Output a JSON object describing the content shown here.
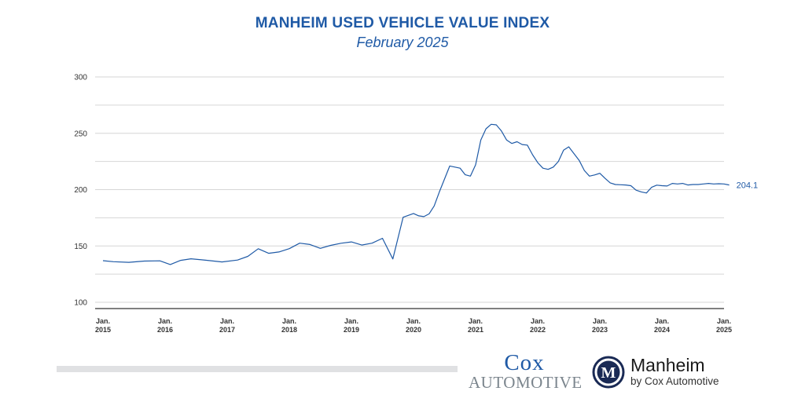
{
  "chart_data": {
    "type": "line",
    "title": "MANHEIM USED VEHICLE VALUE INDEX",
    "subtitle": "February 2025",
    "xlabel": "",
    "ylabel": "",
    "ylim": [
      100,
      300
    ],
    "yticks": [
      "100",
      "150",
      "200",
      "250",
      "300"
    ],
    "xticks": [
      {
        "line1": "Jan.",
        "line2": "2015"
      },
      {
        "line1": "Jan.",
        "line2": "2016"
      },
      {
        "line1": "Jan.",
        "line2": "2017"
      },
      {
        "line1": "Jan.",
        "line2": "2018"
      },
      {
        "line1": "Jan.",
        "line2": "2019"
      },
      {
        "line1": "Jan.",
        "line2": "2020"
      },
      {
        "line1": "Jan.",
        "line2": "2021"
      },
      {
        "line1": "Jan.",
        "line2": "2022"
      },
      {
        "line1": "Jan.",
        "line2": "2023"
      },
      {
        "line1": "Jan.",
        "line2": "2024"
      },
      {
        "line1": "Jan.",
        "line2": "2025"
      }
    ],
    "grid": true,
    "line_color": "#1f5aa6",
    "end_label": "204.1",
    "series": [
      {
        "name": "",
        "x": [
          "2015-01",
          "2015-03",
          "2015-06",
          "2015-09",
          "2015-12",
          "2016-02",
          "2016-04",
          "2016-06",
          "2016-09",
          "2016-12",
          "2017-03",
          "2017-05",
          "2017-07",
          "2017-09",
          "2017-11",
          "2018-01",
          "2018-03",
          "2018-05",
          "2018-07",
          "2018-09",
          "2018-11",
          "2019-01",
          "2019-03",
          "2019-05",
          "2019-07",
          "2019-09",
          "2019-11",
          "2020-01",
          "2020-02",
          "2020-03",
          "2020-04",
          "2020-05",
          "2020-06",
          "2020-08",
          "2020-10",
          "2020-11",
          "2020-12",
          "2021-01",
          "2021-02",
          "2021-03",
          "2021-04",
          "2021-05",
          "2021-06",
          "2021-07",
          "2021-08",
          "2021-09",
          "2021-10",
          "2021-11",
          "2021-12",
          "2022-01",
          "2022-02",
          "2022-03",
          "2022-04",
          "2022-05",
          "2022-06",
          "2022-07",
          "2022-08",
          "2022-09",
          "2022-10",
          "2022-11",
          "2022-12",
          "2023-01",
          "2023-02",
          "2023-03",
          "2023-04",
          "2023-05",
          "2023-06",
          "2023-07",
          "2023-08",
          "2023-09",
          "2023-10",
          "2023-11",
          "2023-12",
          "2024-01",
          "2024-02",
          "2024-03",
          "2024-04",
          "2024-05",
          "2024-06",
          "2024-07",
          "2024-08",
          "2024-09",
          "2024-10",
          "2024-11",
          "2024-12",
          "2025-01",
          "2025-02"
        ],
        "values": [
          136.9,
          136.0,
          135.5,
          136.6,
          136.8,
          133.5,
          137.2,
          138.6,
          137.3,
          135.8,
          137.5,
          140.8,
          147.5,
          143.5,
          144.7,
          147.6,
          152.5,
          151.3,
          147.9,
          150.5,
          152.4,
          153.6,
          150.8,
          152.5,
          156.8,
          138.5,
          175.5,
          178.8,
          176.7,
          176.0,
          178.5,
          185.5,
          198.0,
          221.0,
          219.0,
          213.2,
          212.0,
          222.0,
          244.0,
          254.0,
          258.0,
          257.5,
          252.0,
          244.0,
          241.0,
          242.5,
          240.0,
          239.5,
          231.0,
          224.0,
          219.0,
          218.0,
          220.0,
          225.0,
          235.0,
          238.0,
          232.0,
          226.0,
          217.0,
          212.0,
          213.0,
          214.5,
          210.0,
          206.0,
          204.5,
          204.3,
          204.1,
          203.5,
          199.5,
          198.0,
          197.0,
          202.0,
          204.0,
          203.5,
          203.2,
          205.5,
          205.0,
          205.5,
          204.1,
          204.5,
          204.5,
          205.0,
          205.5,
          205.0,
          205.2,
          205.0,
          204.1
        ]
      }
    ]
  },
  "footer": {
    "cox_line1": "Cox",
    "cox_line2": "AUTOMOTIVE",
    "manheim_name": "Manheim",
    "manheim_by": "by Cox Automotive",
    "emblem_letter": "M"
  }
}
